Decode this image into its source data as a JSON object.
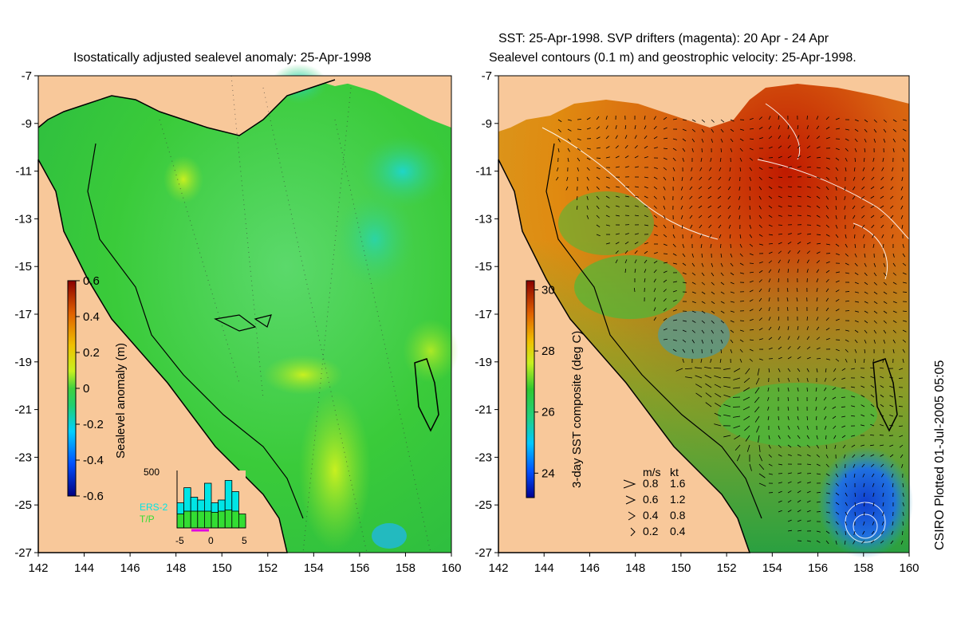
{
  "left_panel": {
    "title": "Isostatically adjusted sealevel anomaly: 25-Apr-1998",
    "colorbar": {
      "label": "Sealevel anomaly (m)",
      "ticks": [
        "0.6",
        "0.4",
        "0.2",
        "0",
        "-0.2",
        "-0.4",
        "-0.6"
      ],
      "min": -0.6,
      "max": 0.6
    },
    "histogram": {
      "y_tick": "500",
      "x_ticks": [
        "-5",
        "0",
        "5"
      ],
      "legend": [
        "ERS-2",
        "T/P"
      ],
      "colors": {
        "ers2": "#00e5e5",
        "tp": "#33dd33"
      },
      "ers2_values": [
        0.45,
        0.72,
        0.55,
        0.5,
        0.8,
        0.45,
        0.5,
        0.85,
        0.65,
        0.2
      ],
      "tp_values": [
        0.25,
        0.3,
        0.3,
        0.3,
        0.3,
        0.28,
        0.3,
        0.32,
        0.3,
        0.25
      ]
    }
  },
  "right_panel": {
    "title_line1": "SST: 25-Apr-1998. SVP drifters (magenta): 20 Apr - 24 Apr",
    "title_line2": "Sealevel contours (0.1 m) and geostrophic velocity: 25-Apr-1998.",
    "colorbar": {
      "label": "3-day SST composite (deg C)",
      "ticks": [
        "30",
        "28",
        "26",
        "24"
      ],
      "min": 23.2,
      "max": 30.3
    },
    "velocity_legend": {
      "header_ms": "m/s",
      "header_kt": "kt",
      "rows": [
        {
          "ms": "0.8",
          "kt": "1.6"
        },
        {
          "ms": "0.6",
          "kt": "1.2"
        },
        {
          "ms": "0.4",
          "kt": "0.8"
        },
        {
          "ms": "0.2",
          "kt": "0.4"
        }
      ]
    }
  },
  "axes": {
    "lat_ticks": [
      "-7",
      "-9",
      "-11",
      "-13",
      "-15",
      "-17",
      "-19",
      "-21",
      "-23",
      "-25",
      "-27"
    ],
    "lon_ticks": [
      "142",
      "144",
      "146",
      "148",
      "150",
      "152",
      "154",
      "156",
      "158",
      "160"
    ],
    "lat_range": [
      -27,
      -7
    ],
    "lon_range": [
      142,
      160
    ]
  },
  "credit": "CSIRO Plotted 01-Jul-2005 05:05",
  "colors": {
    "land": "#f8c89a",
    "ocean_green": "#2fd02f",
    "ocean_warm": "#e08a10",
    "ocean_hot": "#b81a00"
  }
}
